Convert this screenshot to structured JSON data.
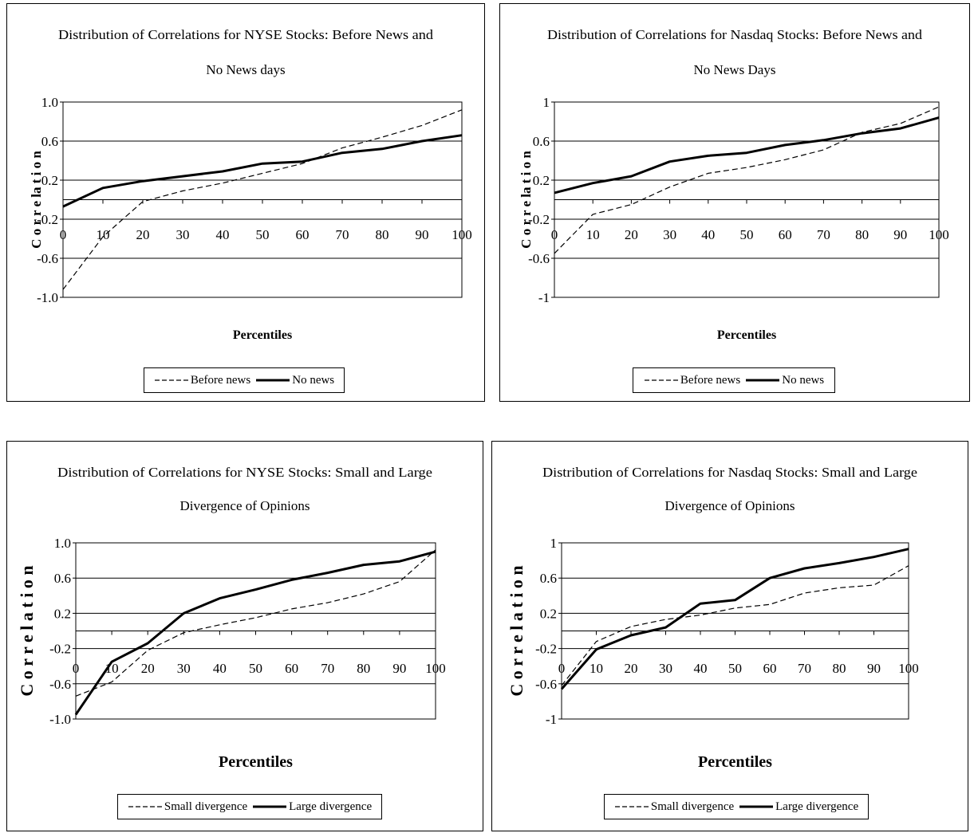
{
  "chart_data": [
    {
      "type": "line",
      "title_lines": [
        "Distribution of Correlations for NYSE Stocks: Before News and",
        "No News days"
      ],
      "xlabel": "Percentiles",
      "ylabel": "C o r r e la t i o n",
      "ylim": [
        -1.0,
        1.0
      ],
      "yticks": [
        "1.0",
        "0.6",
        "0.2",
        "-0.2",
        "-0.6",
        "-1.0"
      ],
      "ytick_values": [
        1.0,
        0.6,
        0.2,
        -0.2,
        -0.6,
        -1.0
      ],
      "gridlines": [
        1.0,
        0.6,
        0.2,
        0.0,
        -0.2,
        -0.6,
        -1.0
      ],
      "x": [
        0,
        10,
        20,
        30,
        40,
        50,
        60,
        70,
        80,
        90,
        100
      ],
      "xticks": [
        "0",
        "10",
        "20",
        "30",
        "40",
        "50",
        "60",
        "70",
        "80",
        "90",
        "100"
      ],
      "legend_position": "bottom",
      "series": [
        {
          "name": "Before news",
          "style": "dashed",
          "values": [
            -0.92,
            -0.38,
            -0.02,
            0.09,
            0.17,
            0.27,
            0.37,
            0.53,
            0.64,
            0.76,
            0.92
          ]
        },
        {
          "name": "No news",
          "style": "solid",
          "values": [
            -0.07,
            0.12,
            0.19,
            0.24,
            0.29,
            0.37,
            0.39,
            0.48,
            0.52,
            0.6,
            0.66
          ]
        }
      ]
    },
    {
      "type": "line",
      "title_lines": [
        "Distribution of Correlations for Nasdaq Stocks: Before News and",
        "No News Days"
      ],
      "xlabel": "Percentiles",
      "ylabel": "C o r r e la t i o n",
      "ylim": [
        -1.0,
        1.0
      ],
      "yticks": [
        "1",
        "0.6",
        "0.2",
        "-0.2",
        "-0.6",
        "-1"
      ],
      "ytick_values": [
        1.0,
        0.6,
        0.2,
        -0.2,
        -0.6,
        -1.0
      ],
      "gridlines": [
        1.0,
        0.6,
        0.2,
        0.0,
        -0.2,
        -0.6,
        -1.0
      ],
      "x": [
        0,
        10,
        20,
        30,
        40,
        50,
        60,
        70,
        80,
        90,
        100
      ],
      "xticks": [
        "0",
        "10",
        "20",
        "30",
        "40",
        "50",
        "60",
        "70",
        "80",
        "90",
        "100"
      ],
      "legend_position": "bottom",
      "series": [
        {
          "name": "Before news",
          "style": "dashed",
          "values": [
            -0.55,
            -0.15,
            -0.05,
            0.13,
            0.27,
            0.33,
            0.41,
            0.51,
            0.69,
            0.78,
            0.95
          ]
        },
        {
          "name": "No news",
          "style": "solid",
          "values": [
            0.07,
            0.17,
            0.24,
            0.39,
            0.45,
            0.48,
            0.56,
            0.61,
            0.68,
            0.73,
            0.84
          ]
        }
      ]
    },
    {
      "type": "line",
      "title_lines": [
        "Distribution of Correlations for NYSE Stocks: Small and Large",
        "Divergence of Opinions"
      ],
      "xlabel": "Percentiles",
      "ylabel": "C o r r e l a t i o n",
      "ylim": [
        -1.0,
        1.0
      ],
      "yticks": [
        "1.0",
        "0.6",
        "0.2",
        "-0.2",
        "-0.6",
        "-1.0"
      ],
      "ytick_values": [
        1.0,
        0.6,
        0.2,
        -0.2,
        -0.6,
        -1.0
      ],
      "gridlines": [
        1.0,
        0.6,
        0.2,
        0.0,
        -0.2,
        -0.6,
        -1.0
      ],
      "x": [
        0,
        10,
        20,
        30,
        40,
        50,
        60,
        70,
        80,
        90,
        100
      ],
      "xticks": [
        "0",
        "10",
        "20",
        "30",
        "40",
        "50",
        "60",
        "70",
        "80",
        "90",
        "100"
      ],
      "legend_position": "bottom",
      "series": [
        {
          "name": "Small divergence",
          "style": "dashed",
          "values": [
            -0.74,
            -0.58,
            -0.22,
            -0.02,
            0.07,
            0.15,
            0.25,
            0.32,
            0.42,
            0.56,
            0.92
          ]
        },
        {
          "name": "Large divergence",
          "style": "solid",
          "values": [
            -0.95,
            -0.35,
            -0.14,
            0.2,
            0.37,
            0.47,
            0.58,
            0.66,
            0.75,
            0.79,
            0.9
          ]
        }
      ]
    },
    {
      "type": "line",
      "title_lines": [
        "Distribution of Correlations for Nasdaq Stocks: Small and Large",
        "Divergence of Opinions"
      ],
      "xlabel": "Percentiles",
      "ylabel": "C o r r e l a t i o n",
      "ylim": [
        -1.0,
        1.0
      ],
      "yticks": [
        "1",
        "0.6",
        "0.2",
        "-0.2",
        "-0.6",
        "-1"
      ],
      "ytick_values": [
        1.0,
        0.6,
        0.2,
        -0.2,
        -0.6,
        -1.0
      ],
      "gridlines": [
        1.0,
        0.6,
        0.2,
        0.0,
        -0.2,
        -0.6,
        -1.0
      ],
      "x": [
        0,
        10,
        20,
        30,
        40,
        50,
        60,
        70,
        80,
        90,
        100
      ],
      "xticks": [
        "0",
        "10",
        "20",
        "30",
        "40",
        "50",
        "60",
        "70",
        "80",
        "90",
        "100"
      ],
      "legend_position": "bottom",
      "series": [
        {
          "name": "Small divergence",
          "style": "dashed",
          "values": [
            -0.62,
            -0.12,
            0.05,
            0.13,
            0.18,
            0.26,
            0.3,
            0.43,
            0.49,
            0.52,
            0.74
          ]
        },
        {
          "name": "Large divergence",
          "style": "solid",
          "values": [
            -0.66,
            -0.21,
            -0.05,
            0.04,
            0.31,
            0.35,
            0.6,
            0.71,
            0.77,
            0.84,
            0.93
          ]
        }
      ]
    }
  ]
}
